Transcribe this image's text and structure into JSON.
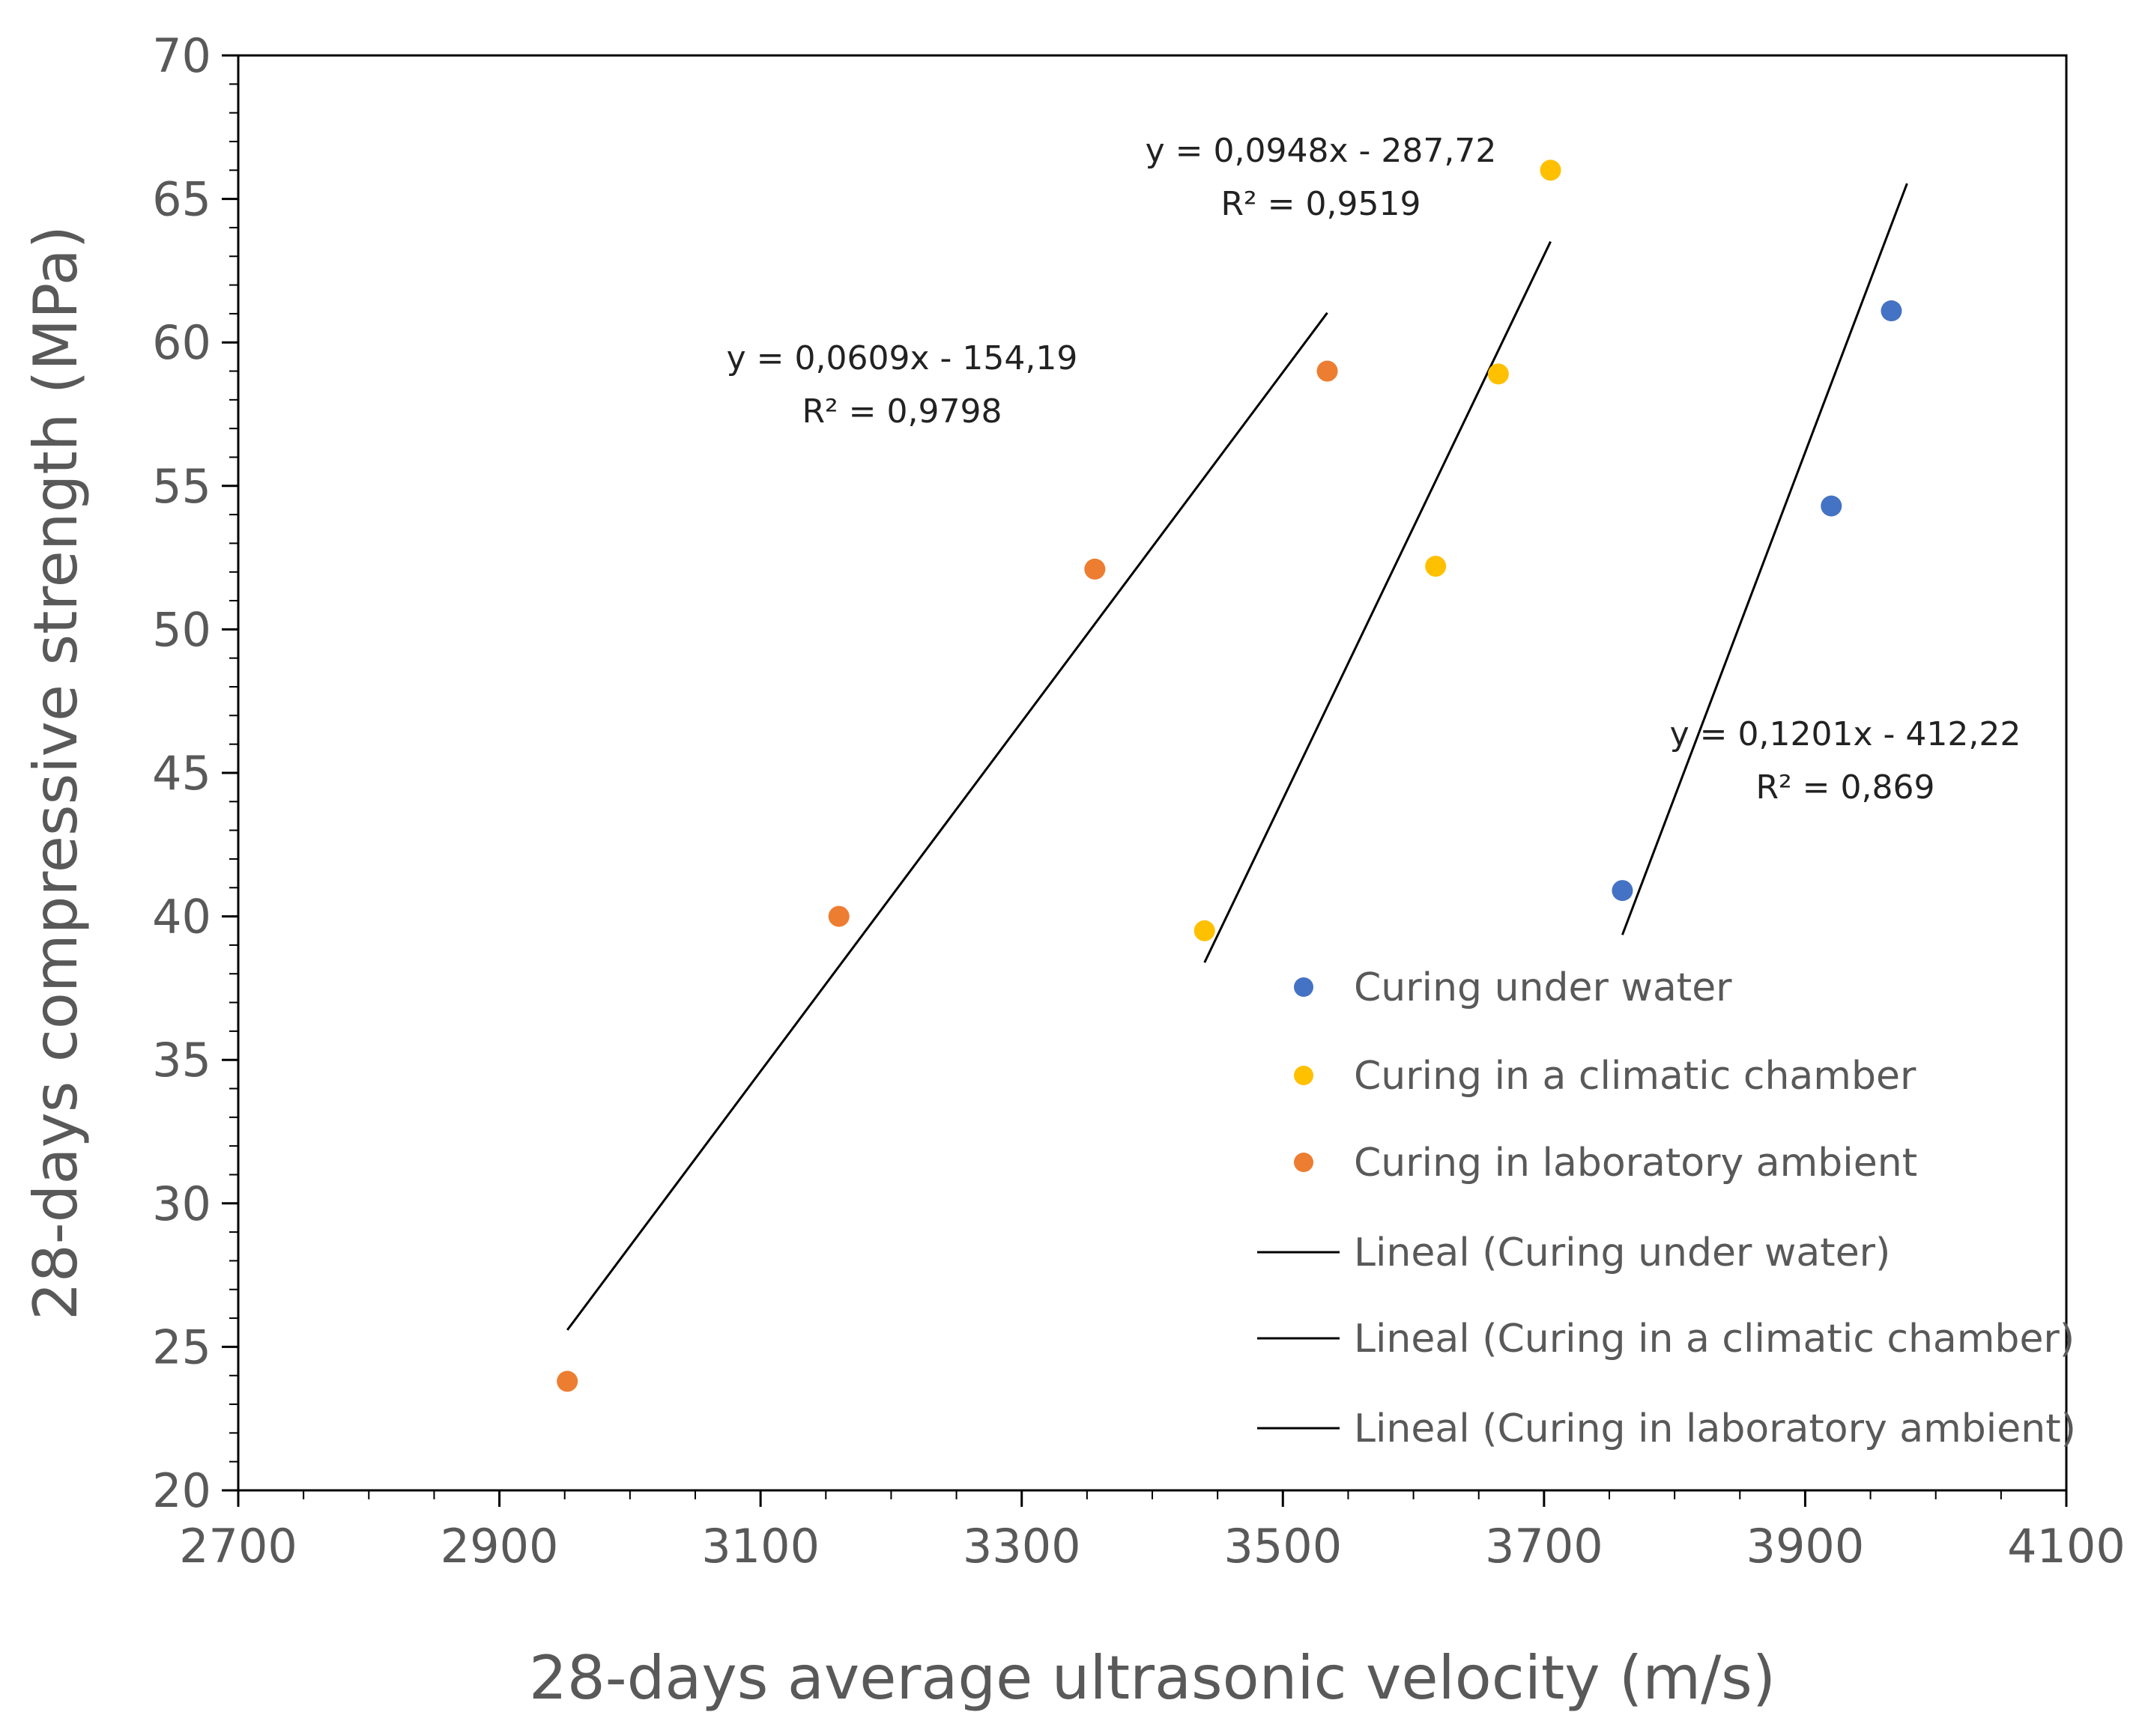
{
  "chart_data": {
    "type": "scatter",
    "title": "",
    "xlabel": "28-days average ultrasonic velocity (m/s)",
    "ylabel": "28-days compressive strength (MPa)",
    "xlim": [
      2700,
      4100
    ],
    "ylim": [
      20,
      70
    ],
    "xticks": [
      2700,
      2900,
      3100,
      3300,
      3500,
      3700,
      3900,
      4100
    ],
    "yticks": [
      20,
      25,
      30,
      35,
      40,
      45,
      50,
      55,
      60,
      65,
      70
    ],
    "xtick_labels": [
      "2700",
      "2900",
      "3100",
      "3300",
      "3500",
      "3700",
      "3900",
      "4100"
    ],
    "ytick_labels": [
      "20",
      "25",
      "30",
      "35",
      "40",
      "45",
      "50",
      "55",
      "60",
      "65",
      "70"
    ],
    "grid": false,
    "legend_position": "right",
    "series": [
      {
        "name": "Curing under water",
        "color": "#4472C4",
        "x": [
          3760,
          3920,
          3966
        ],
        "y": [
          40.9,
          54.3,
          61.1
        ],
        "trendline": {
          "label": "Lineal (Curing under water)",
          "x_range": [
            3760,
            3978
          ],
          "slope": 0.1201,
          "intercept": -412.22,
          "equation": "y = 0,1201x - 412,22",
          "r2": "R² = 0,869"
        }
      },
      {
        "name": "Curing in a climatic chamber",
        "color": "#FFC000",
        "x": [
          3440,
          3617,
          3665,
          3705
        ],
        "y": [
          39.5,
          52.2,
          58.9,
          66.0
        ],
        "trendline": {
          "label": "Lineal (Curing in a climatic chamber)",
          "x_range": [
            3440,
            3705
          ],
          "slope": 0.0948,
          "intercept": -287.72,
          "equation": "y = 0,0948x - 287,72",
          "r2": "R² = 0,9519"
        }
      },
      {
        "name": "Curing in laboratory ambient",
        "color": "#ED7D31",
        "x": [
          2952,
          3160,
          3356,
          3534
        ],
        "y": [
          23.8,
          40.0,
          52.1,
          59.0
        ],
        "trendline": {
          "label": "Lineal (Curing in laboratory ambient)",
          "x_range": [
            2952,
            3534
          ],
          "slope": 0.0609,
          "intercept": -154.19,
          "equation": "y = 0,0609x - 154,19",
          "r2": "R² = 0,9798"
        }
      }
    ]
  }
}
